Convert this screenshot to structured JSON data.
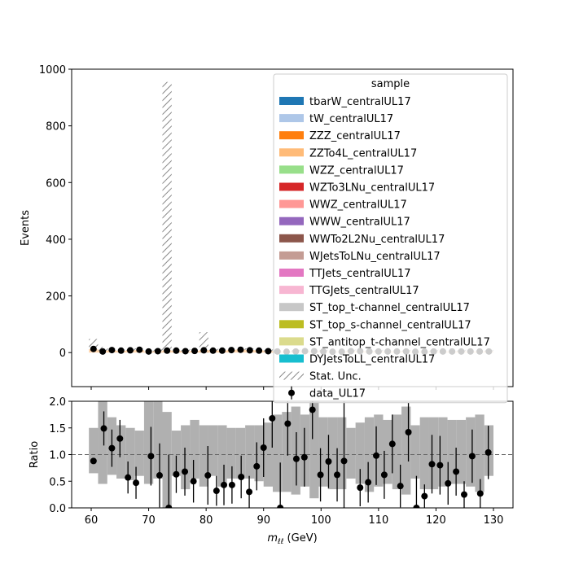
{
  "chart_data": [
    {
      "type": "histogram-stack",
      "ylabel": "Events",
      "ylim": [
        -120,
        1000
      ],
      "xlim": [
        56.6,
        133.4
      ],
      "yticks": [
        0,
        200,
        400,
        600,
        800,
        1000
      ],
      "legend": {
        "title": "sample",
        "placement": "top-right",
        "entries": [
          {
            "label": "tbarW_centralUL17",
            "color": "#1f77b4",
            "kind": "patch"
          },
          {
            "label": "tW_centralUL17",
            "color": "#aec7e8",
            "kind": "patch"
          },
          {
            "label": "ZZZ_centralUL17",
            "color": "#ff7f0e",
            "kind": "patch"
          },
          {
            "label": "ZZTo4L_centralUL17",
            "color": "#ffbb78",
            "kind": "patch"
          },
          {
            "label": "WZZ_centralUL17",
            "color": "#98df8a",
            "kind": "patch"
          },
          {
            "label": "WZTo3LNu_centralUL17",
            "color": "#d62728",
            "kind": "patch"
          },
          {
            "label": "WWZ_centralUL17",
            "color": "#ff9896",
            "kind": "patch"
          },
          {
            "label": "WWW_centralUL17",
            "color": "#9467bd",
            "kind": "patch"
          },
          {
            "label": "WWTo2L2Nu_centralUL17",
            "color": "#8c564b",
            "kind": "patch"
          },
          {
            "label": "WJetsToLNu_centralUL17",
            "color": "#c49c94",
            "kind": "patch"
          },
          {
            "label": "TTJets_centralUL17",
            "color": "#e377c2",
            "kind": "patch"
          },
          {
            "label": "TTGJets_centralUL17",
            "color": "#f7b6d2",
            "kind": "patch"
          },
          {
            "label": "ST_top_t-channel_centralUL17",
            "color": "#c7c7c7",
            "kind": "patch"
          },
          {
            "label": "ST_top_s-channel_centralUL17",
            "color": "#bcbd22",
            "kind": "patch"
          },
          {
            "label": "ST_antitop_t-channel_centralUL17",
            "color": "#dbdb8d",
            "kind": "patch"
          },
          {
            "label": "DYJetsToLL_centralUL17",
            "color": "#17becf",
            "kind": "patch"
          },
          {
            "label": "Stat. Unc.",
            "color": "#888888",
            "kind": "hatch"
          },
          {
            "label": "data_UL17",
            "color": "#000000",
            "kind": "marker"
          }
        ]
      },
      "bins": {
        "centers": [
          60.4,
          62.0,
          63.6,
          65.2,
          66.8,
          68.4,
          70.0,
          71.6,
          73.2,
          74.8,
          76.4,
          78.0,
          79.6,
          81.2,
          82.8,
          84.4,
          86.0,
          87.6,
          89.2,
          90.8,
          92.4,
          94.0,
          95.6,
          97.2,
          98.8,
          100.4,
          102.0,
          103.6,
          105.2,
          106.8,
          108.4,
          110.0,
          111.6,
          113.2,
          114.8,
          116.4,
          118.0,
          119.6,
          121.2,
          122.8,
          124.4,
          126.0,
          127.6,
          129.2
        ],
        "mc_total": [
          12,
          7,
          8,
          6,
          8,
          9,
          4,
          5,
          8,
          7,
          4,
          6,
          9,
          8,
          7,
          10,
          11,
          9,
          8,
          5,
          4,
          3,
          4,
          5,
          5,
          4,
          3,
          3,
          5,
          5,
          4,
          4,
          4,
          4,
          4,
          3,
          3,
          4,
          4,
          4,
          4,
          4,
          4,
          4
        ],
        "stat_unc_upper": [
          48,
          20,
          14,
          12,
          14,
          15,
          10,
          12,
          955,
          13,
          10,
          12,
          72,
          14,
          13,
          16,
          17,
          15,
          14,
          11,
          10,
          9,
          10,
          11,
          11,
          10,
          9,
          9,
          11,
          11,
          10,
          10,
          10,
          10,
          10,
          9,
          9,
          10,
          10,
          10,
          10,
          10,
          10,
          10
        ],
        "data": [
          13,
          4,
          9,
          7,
          8,
          10,
          4,
          5,
          7,
          7,
          5,
          6,
          8,
          7,
          7,
          9,
          10,
          8,
          7,
          5,
          4,
          3,
          4,
          5,
          5,
          4,
          3,
          3,
          5,
          5,
          4,
          4,
          4,
          4,
          4,
          3,
          3,
          4,
          4,
          4,
          4,
          4,
          4,
          4
        ]
      }
    },
    {
      "type": "ratio",
      "xlabel": "m_ℓℓ (GeV)",
      "xlabel_main": "m",
      "xlabel_sub": "ℓℓ",
      "xlabel_unit": " (GeV)",
      "ylabel": "Ratio",
      "ylim": [
        0,
        2
      ],
      "yticks": [
        "0.0",
        "0.5",
        "1.0",
        "1.5",
        "2.0"
      ],
      "xticks": [
        60,
        70,
        80,
        90,
        100,
        110,
        120,
        130
      ],
      "reference_line": 1.0,
      "band": {
        "edges": [
          59.6,
          61.2,
          62.8,
          64.4,
          66.0,
          67.6,
          69.2,
          70.8,
          72.4,
          74.0,
          75.6,
          77.2,
          78.8,
          80.4,
          82.0,
          83.6,
          85.2,
          86.8,
          88.4,
          90.0,
          91.6,
          93.2,
          94.8,
          96.4,
          98.0,
          99.6,
          101.2,
          102.8,
          104.4,
          106.0,
          107.6,
          109.2,
          110.8,
          112.4,
          114.0,
          115.6,
          117.2,
          118.8,
          120.4,
          122.0,
          123.6,
          125.2,
          126.8,
          128.4,
          130.0
        ],
        "low": [
          0.65,
          0.45,
          0.62,
          0.55,
          0.52,
          0.6,
          0.45,
          0.55,
          0.0,
          0.6,
          0.35,
          0.55,
          0.4,
          0.6,
          0.4,
          0.55,
          0.55,
          0.55,
          0.5,
          0.4,
          0.3,
          0.3,
          0.25,
          0.4,
          0.18,
          0.4,
          0.35,
          0.35,
          0.55,
          0.45,
          0.3,
          0.4,
          0.45,
          0.35,
          0.25,
          0.55,
          0.35,
          0.35,
          0.4,
          0.45,
          0.45,
          0.4,
          0.3,
          0.6
        ],
        "high": [
          1.5,
          2.0,
          1.7,
          1.55,
          1.5,
          1.45,
          2.0,
          2.0,
          1.8,
          1.45,
          1.55,
          1.65,
          1.55,
          1.55,
          1.55,
          1.5,
          1.5,
          1.55,
          1.55,
          1.6,
          1.75,
          1.8,
          1.9,
          1.75,
          2.0,
          1.7,
          1.7,
          1.7,
          1.5,
          1.6,
          1.7,
          1.75,
          1.65,
          1.75,
          1.9,
          1.55,
          1.7,
          1.7,
          1.7,
          1.65,
          1.65,
          1.7,
          1.75,
          1.55
        ]
      },
      "points": [
        {
          "x": 60.4,
          "y": 0.88,
          "err": 0
        },
        {
          "x": 62.2,
          "y": 1.49,
          "err": 0.32
        },
        {
          "x": 63.6,
          "y": 1.12,
          "err": 0.35
        },
        {
          "x": 65.0,
          "y": 1.3,
          "err": 0.35
        },
        {
          "x": 66.4,
          "y": 0.57,
          "err": 0.3
        },
        {
          "x": 67.8,
          "y": 0.47,
          "err": 0.3
        },
        {
          "x": 70.4,
          "y": 0.97,
          "err": 0.55
        },
        {
          "x": 71.9,
          "y": 0.61,
          "err": 0.6
        },
        {
          "x": 73.5,
          "y": 0.0,
          "err": 1.0
        },
        {
          "x": 74.8,
          "y": 0.63,
          "err": 0.35
        },
        {
          "x": 76.3,
          "y": 0.68,
          "err": 0.45
        },
        {
          "x": 77.8,
          "y": 0.5,
          "err": 0.4
        },
        {
          "x": 80.3,
          "y": 0.61,
          "err": 0.55
        },
        {
          "x": 81.8,
          "y": 0.32,
          "err": 0.28
        },
        {
          "x": 83.1,
          "y": 0.43,
          "err": 0.38
        },
        {
          "x": 84.5,
          "y": 0.43,
          "err": 0.35
        },
        {
          "x": 86.1,
          "y": 0.58,
          "err": 0.4
        },
        {
          "x": 87.5,
          "y": 0.3,
          "err": 0.3
        },
        {
          "x": 88.8,
          "y": 0.78,
          "err": 0.45
        },
        {
          "x": 90.0,
          "y": 1.13,
          "err": 0.55
        },
        {
          "x": 91.5,
          "y": 1.68,
          "err": 0.55
        },
        {
          "x": 92.9,
          "y": 0.0,
          "err": 0.85
        },
        {
          "x": 94.2,
          "y": 1.58,
          "err": 0.6
        },
        {
          "x": 95.7,
          "y": 0.92,
          "err": 0.5
        },
        {
          "x": 97.1,
          "y": 0.95,
          "err": 0.55
        },
        {
          "x": 98.5,
          "y": 1.84,
          "err": 0.55
        },
        {
          "x": 99.9,
          "y": 0.62,
          "err": 0.5
        },
        {
          "x": 101.3,
          "y": 0.87,
          "err": 0.5
        },
        {
          "x": 102.8,
          "y": 0.62,
          "err": 0.5
        },
        {
          "x": 104.0,
          "y": 0.88,
          "err": 2.0
        },
        {
          "x": 106.8,
          "y": 0.38,
          "err": 0.35
        },
        {
          "x": 108.2,
          "y": 0.48,
          "err": 0.38
        },
        {
          "x": 109.6,
          "y": 0.98,
          "err": 0.55
        },
        {
          "x": 111.0,
          "y": 0.62,
          "err": 0.45
        },
        {
          "x": 112.4,
          "y": 1.2,
          "err": 0.55
        },
        {
          "x": 113.8,
          "y": 0.41,
          "err": 0.4
        },
        {
          "x": 115.2,
          "y": 1.42,
          "err": 0.55
        },
        {
          "x": 116.6,
          "y": 0.0,
          "err": 0.6
        },
        {
          "x": 118.0,
          "y": 0.22,
          "err": 0.22
        },
        {
          "x": 119.3,
          "y": 0.82,
          "err": 0.55
        },
        {
          "x": 120.7,
          "y": 0.8,
          "err": 0.55
        },
        {
          "x": 122.1,
          "y": 0.46,
          "err": 0.4
        },
        {
          "x": 123.5,
          "y": 0.68,
          "err": 0.45
        },
        {
          "x": 124.9,
          "y": 0.25,
          "err": 0.25
        },
        {
          "x": 126.3,
          "y": 0.97,
          "err": 0.5
        },
        {
          "x": 127.7,
          "y": 0.27,
          "err": 0.27
        },
        {
          "x": 129.1,
          "y": 1.04,
          "err": 0.5
        }
      ]
    }
  ]
}
